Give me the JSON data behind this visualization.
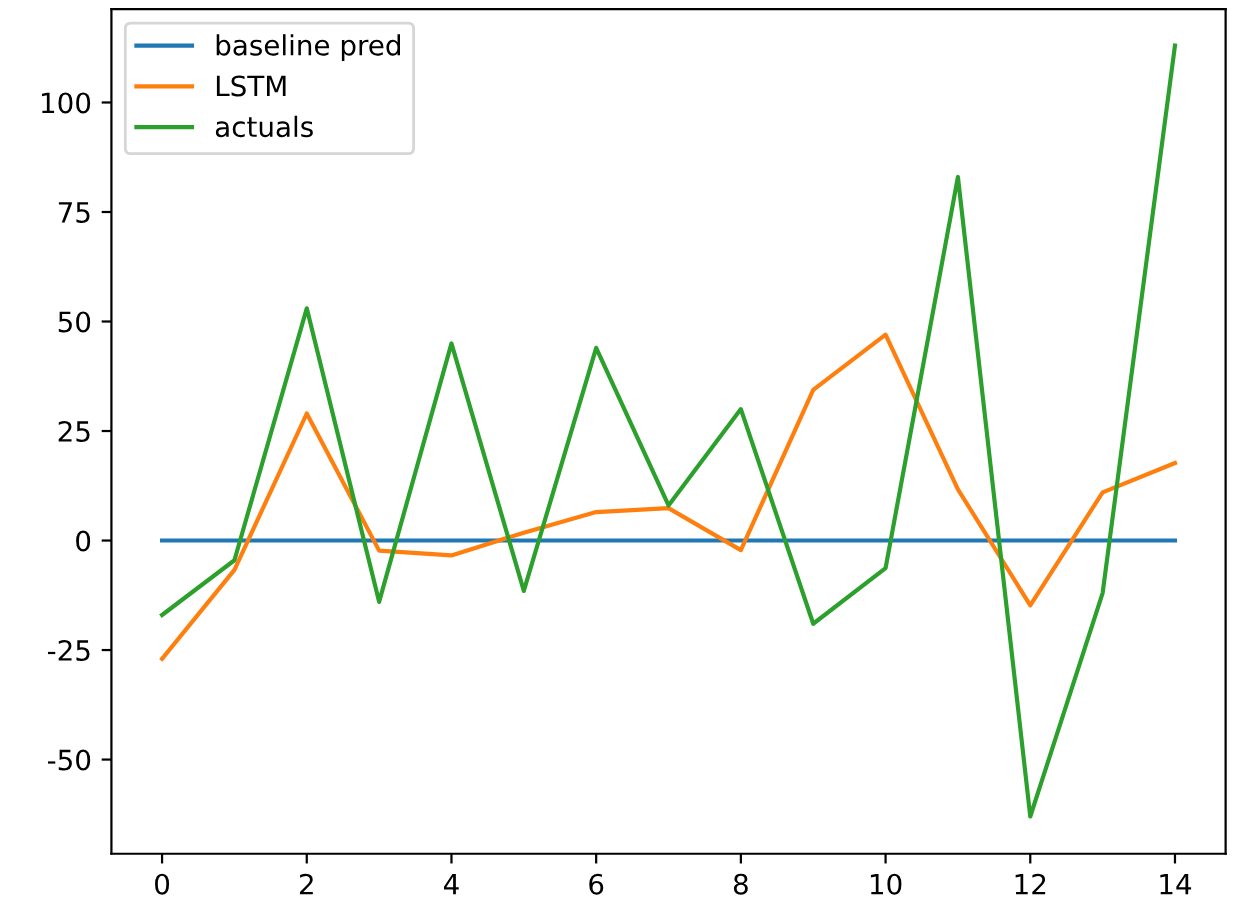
{
  "chart_data": {
    "type": "line",
    "x": [
      0,
      1,
      2,
      3,
      4,
      5,
      6,
      7,
      8,
      9,
      10,
      11,
      12,
      13,
      14
    ],
    "series": [
      {
        "name": "baseline pred",
        "color": "#1f77b4",
        "values": [
          0,
          0,
          0,
          0,
          0,
          0,
          0,
          0,
          0,
          0,
          0,
          0,
          0,
          0,
          0
        ]
      },
      {
        "name": "LSTM",
        "color": "#ff7f0e",
        "values": [
          -27,
          -6.7,
          29,
          -2.3,
          -3.4,
          1.8,
          6.5,
          7.4,
          -2.2,
          34.4,
          47,
          11.7,
          -14.8,
          11,
          17.7
        ]
      },
      {
        "name": "actuals",
        "color": "#2ca02c",
        "values": [
          -17,
          -4.5,
          53,
          -14,
          45,
          -11.5,
          44,
          8,
          30,
          -19,
          -6.3,
          83,
          -63,
          -12,
          113
        ]
      }
    ],
    "xlim": [
      -0.7,
      14.7
    ],
    "xticks": [
      0,
      2,
      4,
      6,
      8,
      10,
      12,
      14
    ],
    "ylim": [
      -71.5,
      121.3
    ],
    "yticks": [
      -50,
      -25,
      0,
      25,
      50,
      75,
      100
    ],
    "grid": false,
    "legend": "top left",
    "line_style": "solid",
    "marker": "none"
  }
}
